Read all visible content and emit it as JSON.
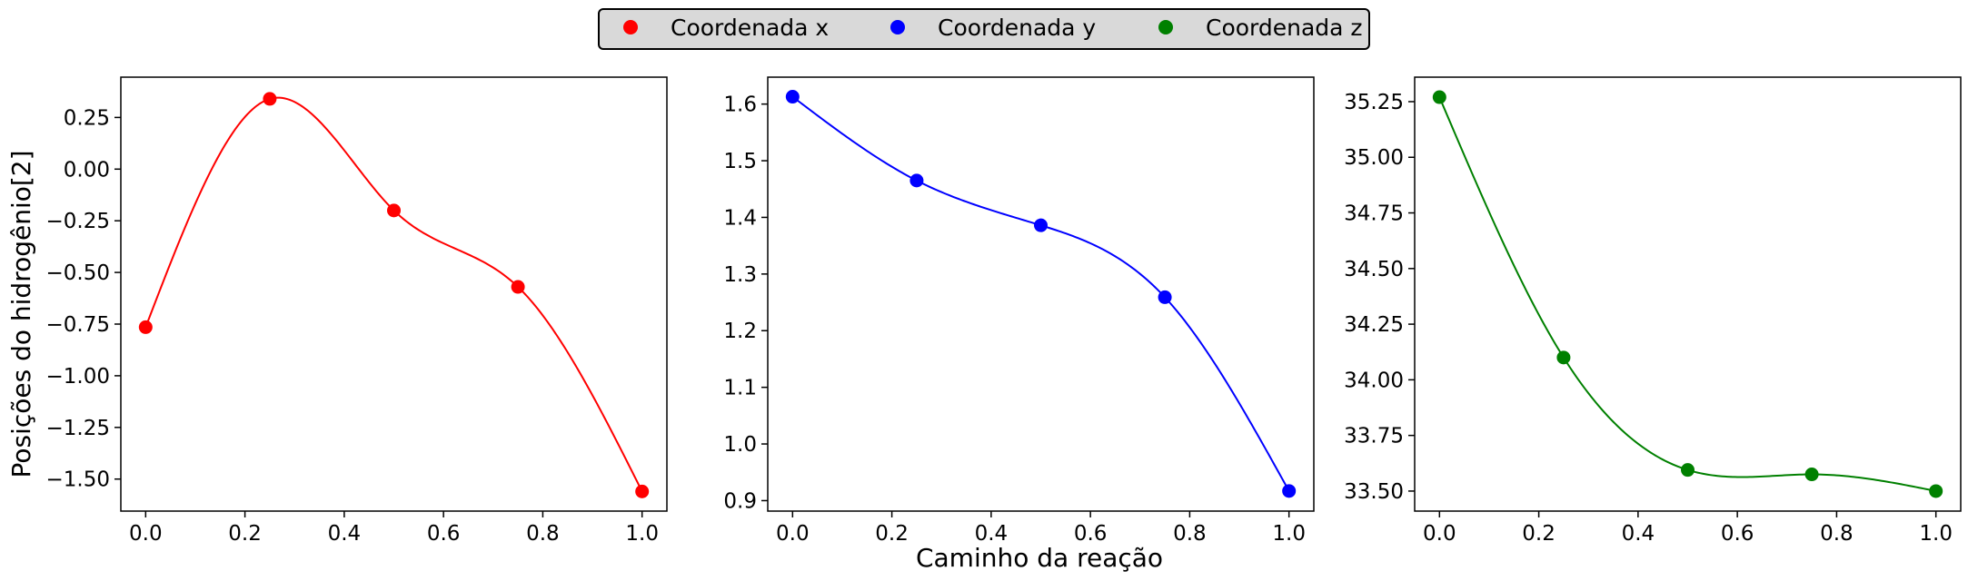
{
  "figure": {
    "xlabel": "Caminho da reação",
    "ylabel": "Posições do hidrogênio[2]"
  },
  "legend": {
    "placement": "top-center",
    "entries": [
      {
        "label": "Coordenada x",
        "color": "#ff0000"
      },
      {
        "label": "Coordenada y",
        "color": "#0000ff"
      },
      {
        "label": "Coordenada z",
        "color": "#008000"
      }
    ]
  },
  "chart_data": [
    {
      "type": "line",
      "series_label": "Coordenada x",
      "color": "#ff0000",
      "x": [
        0.0,
        0.25,
        0.5,
        0.75,
        1.0
      ],
      "y": [
        -0.765,
        0.34,
        -0.2,
        -0.57,
        -1.56
      ],
      "xlim": [
        -0.05,
        1.05
      ],
      "ylim": [
        -1.655,
        0.445
      ],
      "xticks": [
        0.0,
        0.2,
        0.4,
        0.6,
        0.8,
        1.0
      ],
      "xtick_labels": [
        "0.0",
        "0.2",
        "0.4",
        "0.6",
        "0.8",
        "1.0"
      ],
      "yticks": [
        0.25,
        0.0,
        -0.25,
        -0.5,
        -0.75,
        -1.0,
        -1.25,
        -1.5
      ],
      "ytick_labels": [
        "0.25",
        "0.00",
        "−0.25",
        "−0.50",
        "−0.75",
        "−1.00",
        "−1.25",
        "−1.50"
      ],
      "grid": false
    },
    {
      "type": "line",
      "series_label": "Coordenada y",
      "color": "#0000ff",
      "x": [
        0.0,
        0.25,
        0.5,
        0.75,
        1.0
      ],
      "y": [
        1.613,
        1.465,
        1.386,
        1.259,
        0.917
      ],
      "xlim": [
        -0.05,
        1.05
      ],
      "ylim": [
        0.8815,
        1.6475
      ],
      "xticks": [
        0.0,
        0.2,
        0.4,
        0.6,
        0.8,
        1.0
      ],
      "xtick_labels": [
        "0.0",
        "0.2",
        "0.4",
        "0.6",
        "0.8",
        "1.0"
      ],
      "yticks": [
        0.9,
        1.0,
        1.1,
        1.2,
        1.3,
        1.4,
        1.5,
        1.6
      ],
      "ytick_labels": [
        "0.9",
        "1.0",
        "1.1",
        "1.2",
        "1.3",
        "1.4",
        "1.5",
        "1.6"
      ],
      "grid": false
    },
    {
      "type": "line",
      "series_label": "Coordenada z",
      "color": "#008000",
      "x": [
        0.0,
        0.25,
        0.5,
        0.75,
        1.0
      ],
      "y": [
        35.27,
        34.1,
        33.595,
        33.575,
        33.5
      ],
      "xlim": [
        -0.05,
        1.05
      ],
      "ylim": [
        33.41,
        35.36
      ],
      "xticks": [
        0.0,
        0.2,
        0.4,
        0.6,
        0.8,
        1.0
      ],
      "xtick_labels": [
        "0.0",
        "0.2",
        "0.4",
        "0.6",
        "0.8",
        "1.0"
      ],
      "yticks": [
        35.25,
        35.0,
        34.75,
        34.5,
        34.25,
        34.0,
        33.75,
        33.5
      ],
      "ytick_labels": [
        "35.25",
        "35.00",
        "34.75",
        "34.50",
        "34.25",
        "34.00",
        "33.75",
        "33.50"
      ],
      "grid": false
    }
  ]
}
